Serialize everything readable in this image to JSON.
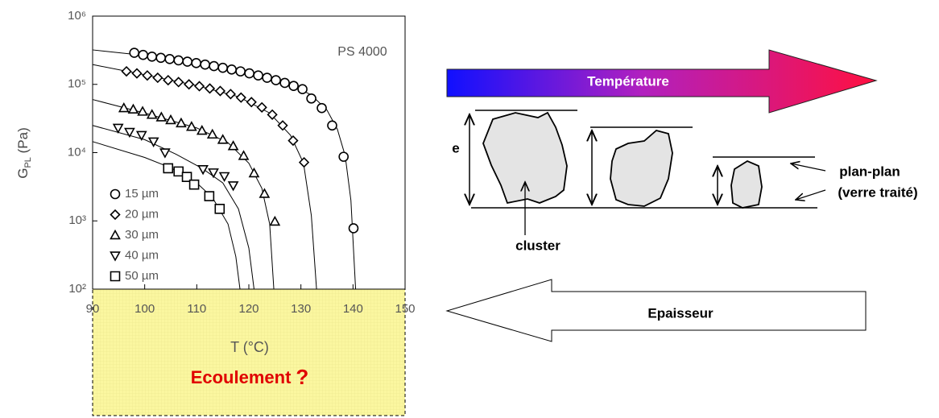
{
  "chart_data": {
    "type": "scatter",
    "log_y": true,
    "y_label": [
      "G",
      "PL",
      " (Pa)"
    ],
    "x_label": "T (°C)",
    "annotation": "PS 4000",
    "note": [
      "Ecoulement",
      "?"
    ],
    "xlim": [
      90,
      150
    ],
    "xticks": [
      90,
      100,
      110,
      120,
      130,
      140,
      150
    ],
    "ylim": [
      100,
      1000000
    ],
    "yticks": [
      {
        "value": 100,
        "label": "10²"
      },
      {
        "value": 1000,
        "label": "10³"
      },
      {
        "value": 10000,
        "label": "10⁴"
      },
      {
        "value": 100000,
        "label": "10⁵"
      },
      {
        "value": 1000000,
        "label": "10⁶"
      }
    ],
    "series": [
      {
        "name": "15 µm",
        "marker": "circle",
        "color": "#000000",
        "x": [
          98,
          99.7,
          101.4,
          103.1,
          104.8,
          106.5,
          108.2,
          109.9,
          111.6,
          113.3,
          115,
          116.7,
          118.4,
          120.1,
          121.8,
          123.5,
          125.2,
          126.9,
          128.6,
          130.3,
          132,
          134,
          136,
          138.2,
          140.1
        ],
        "values": [
          290000,
          270000,
          255000,
          245000,
          235000,
          225000,
          215000,
          205000,
          195000,
          185000,
          175000,
          165000,
          155000,
          145000,
          135000,
          125000,
          115000,
          105000,
          95000,
          85000,
          62000,
          45000,
          25000,
          8700,
          780
        ],
        "fit_x": [
          90,
          100,
          110,
          120,
          128,
          132,
          135,
          137,
          138.5,
          139.6,
          140.5
        ],
        "fit_values": [
          320000,
          265000,
          205000,
          148000,
          100000,
          70000,
          42000,
          22000,
          9000,
          2000,
          100
        ]
      },
      {
        "name": "20 µm",
        "marker": "diamond",
        "color": "#000000",
        "x": [
          96.5,
          98.5,
          100.5,
          102.5,
          104.5,
          106.5,
          108.5,
          110.5,
          112.5,
          114.5,
          116.5,
          118.5,
          120.5,
          122.5,
          124.5,
          126.5,
          128.5,
          130.6
        ],
        "values": [
          155000,
          145000,
          135000,
          125000,
          115000,
          108000,
          100000,
          94000,
          87000,
          80000,
          72000,
          64000,
          55000,
          46000,
          36000,
          25000,
          15000,
          7200
        ],
        "fit_x": [
          90,
          100,
          110,
          118,
          124,
          128,
          130.5,
          132,
          133
        ],
        "fit_values": [
          195000,
          138000,
          96000,
          66000,
          38000,
          18000,
          7000,
          1200,
          100
        ]
      },
      {
        "name": "30 µm",
        "marker": "triangle-up",
        "color": "#000000",
        "x": [
          96,
          97.8,
          99.6,
          101.4,
          103.2,
          105,
          107,
          109,
          111,
          113,
          115,
          117,
          119,
          121,
          123,
          125
        ],
        "values": [
          45000,
          43000,
          40000,
          36000,
          33000,
          30000,
          27000,
          24000,
          21000,
          18500,
          15500,
          12500,
          9000,
          5000,
          2500,
          980
        ],
        "fit_x": [
          90,
          100,
          110,
          116,
          120,
          122.5,
          124,
          124.8
        ],
        "fit_values": [
          60000,
          38000,
          23000,
          14000,
          7000,
          3000,
          900,
          100
        ]
      },
      {
        "name": "40 µm",
        "marker": "triangle-down",
        "color": "#000000",
        "x": [
          94.9,
          97.1,
          99.4,
          101.7,
          103.9,
          111.2,
          113.2,
          115.3,
          117
        ],
        "values": [
          23000,
          20000,
          18000,
          14500,
          10000,
          5700,
          5100,
          4500,
          3300
        ],
        "fit_x": [
          90,
          100,
          106,
          111,
          115,
          118,
          120,
          121
        ],
        "fit_values": [
          25000,
          15500,
          9500,
          5900,
          3600,
          1500,
          400,
          100
        ]
      },
      {
        "name": "50 µm",
        "marker": "square",
        "color": "#000000",
        "x": [
          104.5,
          106.5,
          108.1,
          109.5,
          112.4,
          114.4
        ],
        "values": [
          5900,
          5300,
          4400,
          3400,
          2300,
          1500
        ],
        "fit_x": [
          90,
          100,
          105,
          110,
          113,
          116,
          117.5,
          118.3
        ],
        "fit_values": [
          14500,
          8500,
          6000,
          3600,
          2200,
          900,
          300,
          100
        ]
      }
    ]
  },
  "diagram": {
    "temperature": "Température",
    "thickness_axis": "e",
    "cluster": "cluster",
    "plate_label": [
      "plan-plan",
      "(verre traité)"
    ],
    "thickness": "Epaisseur"
  }
}
